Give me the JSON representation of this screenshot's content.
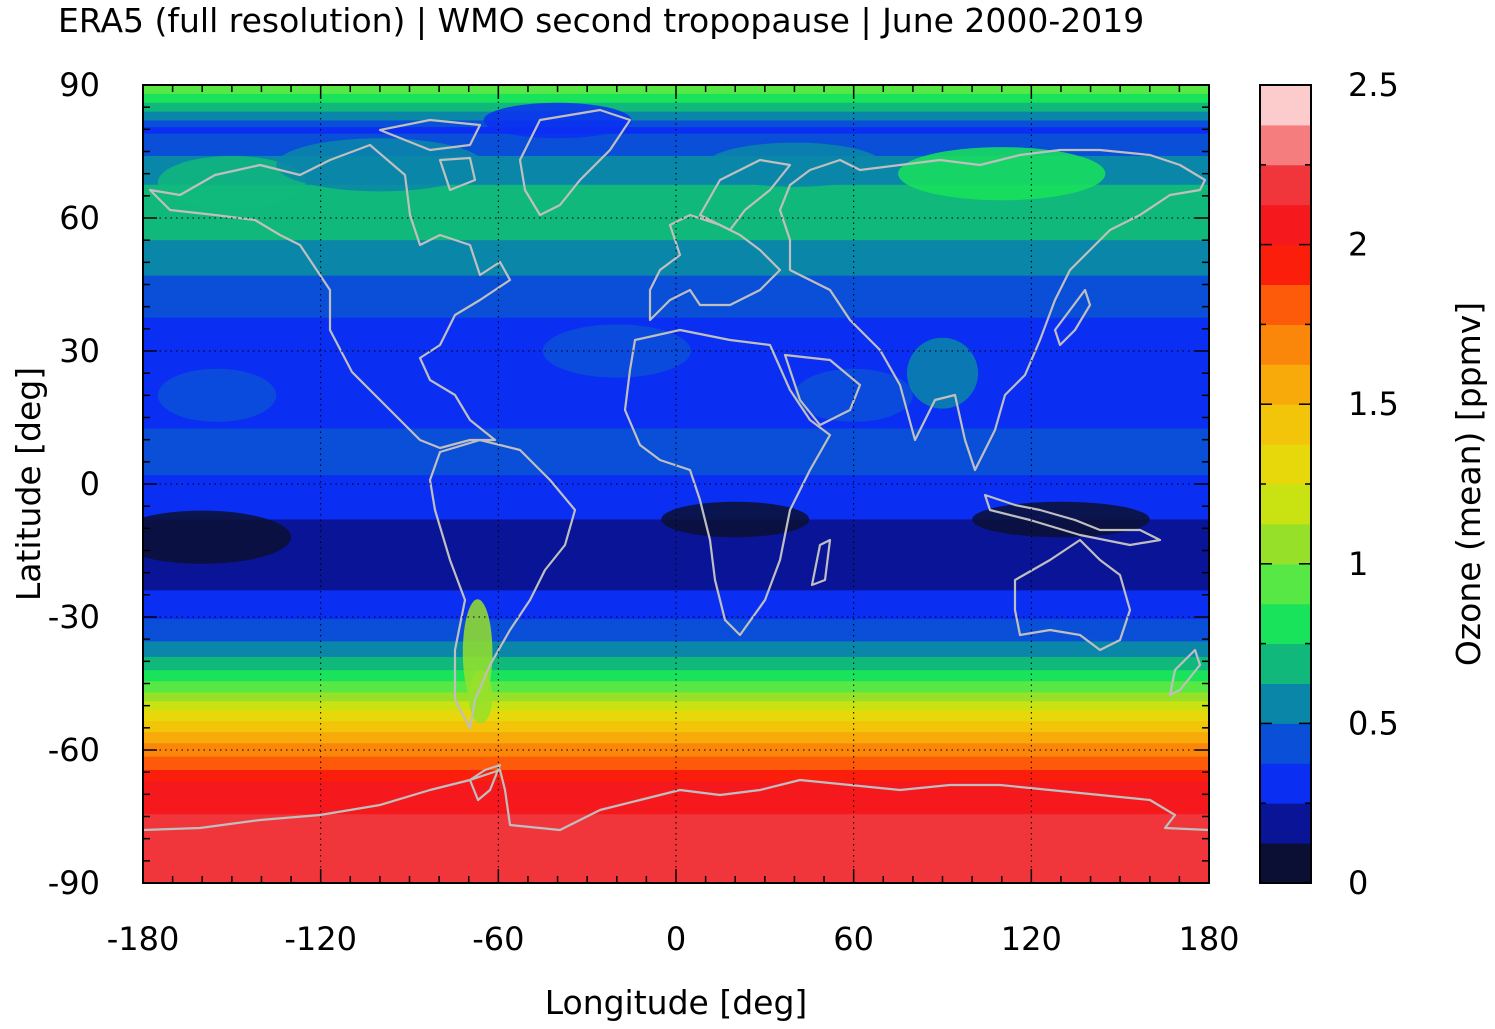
{
  "chart_data": {
    "type": "heatmap",
    "title": "ERA5 (full resolution) | WMO second tropopause | June 2000-2019",
    "xlabel": "Longitude [deg]",
    "ylabel": "Latitude [deg]",
    "colorbar_label": "Ozone (mean) [ppmv]",
    "xlim": [
      -180,
      180
    ],
    "ylim": [
      -90,
      90
    ],
    "xticks": [
      -180,
      -120,
      -60,
      0,
      60,
      120,
      180
    ],
    "yticks": [
      90,
      60,
      30,
      0,
      -30,
      -60,
      -90
    ],
    "colorbar_range": [
      0,
      2.5
    ],
    "colorbar_ticks": [
      "0",
      "0.5",
      "1",
      "1.5",
      "2",
      "2.5"
    ],
    "colorbar_ticks_values": [
      0,
      0.5,
      1,
      1.5,
      2,
      2.5
    ],
    "grid": true,
    "colorbar_colors": [
      "#0b0f33",
      "#0a1496",
      "#0a2ff2",
      "#0a4fd8",
      "#0a86a8",
      "#10b87c",
      "#19e35a",
      "#57e845",
      "#97e02a",
      "#c8e212",
      "#e6d80a",
      "#f2c40a",
      "#f7aa0a",
      "#fb870a",
      "#fd5a0a",
      "#fb1e0a",
      "#f5191d",
      "#f0363a",
      "#f57d7d",
      "#fccccc"
    ],
    "zonal_profile": [
      {
        "lat": 89,
        "value": 0.95
      },
      {
        "lat": 80,
        "value": 0.35
      },
      {
        "lat": 72,
        "value": 0.55
      },
      {
        "lat": 62,
        "value": 0.72
      },
      {
        "lat": 52,
        "value": 0.58
      },
      {
        "lat": 44,
        "value": 0.45
      },
      {
        "lat": 36,
        "value": 0.36
      },
      {
        "lat": 26,
        "value": 0.3
      },
      {
        "lat": 16,
        "value": 0.35
      },
      {
        "lat": 6,
        "value": 0.42
      },
      {
        "lat": -4,
        "value": 0.3
      },
      {
        "lat": -14,
        "value": 0.18
      },
      {
        "lat": -22,
        "value": 0.22
      },
      {
        "lat": -28,
        "value": 0.32
      },
      {
        "lat": -34,
        "value": 0.45
      },
      {
        "lat": -40,
        "value": 0.65
      },
      {
        "lat": -46,
        "value": 0.95
      },
      {
        "lat": -52,
        "value": 1.3
      },
      {
        "lat": -58,
        "value": 1.6
      },
      {
        "lat": -63,
        "value": 1.8
      },
      {
        "lat": -68,
        "value": 2.05
      },
      {
        "lat": -74,
        "value": 2.12
      },
      {
        "lat": -82,
        "value": 2.18
      },
      {
        "lat": -90,
        "value": 2.2
      }
    ],
    "coastline_color": "#bfbfbf"
  }
}
